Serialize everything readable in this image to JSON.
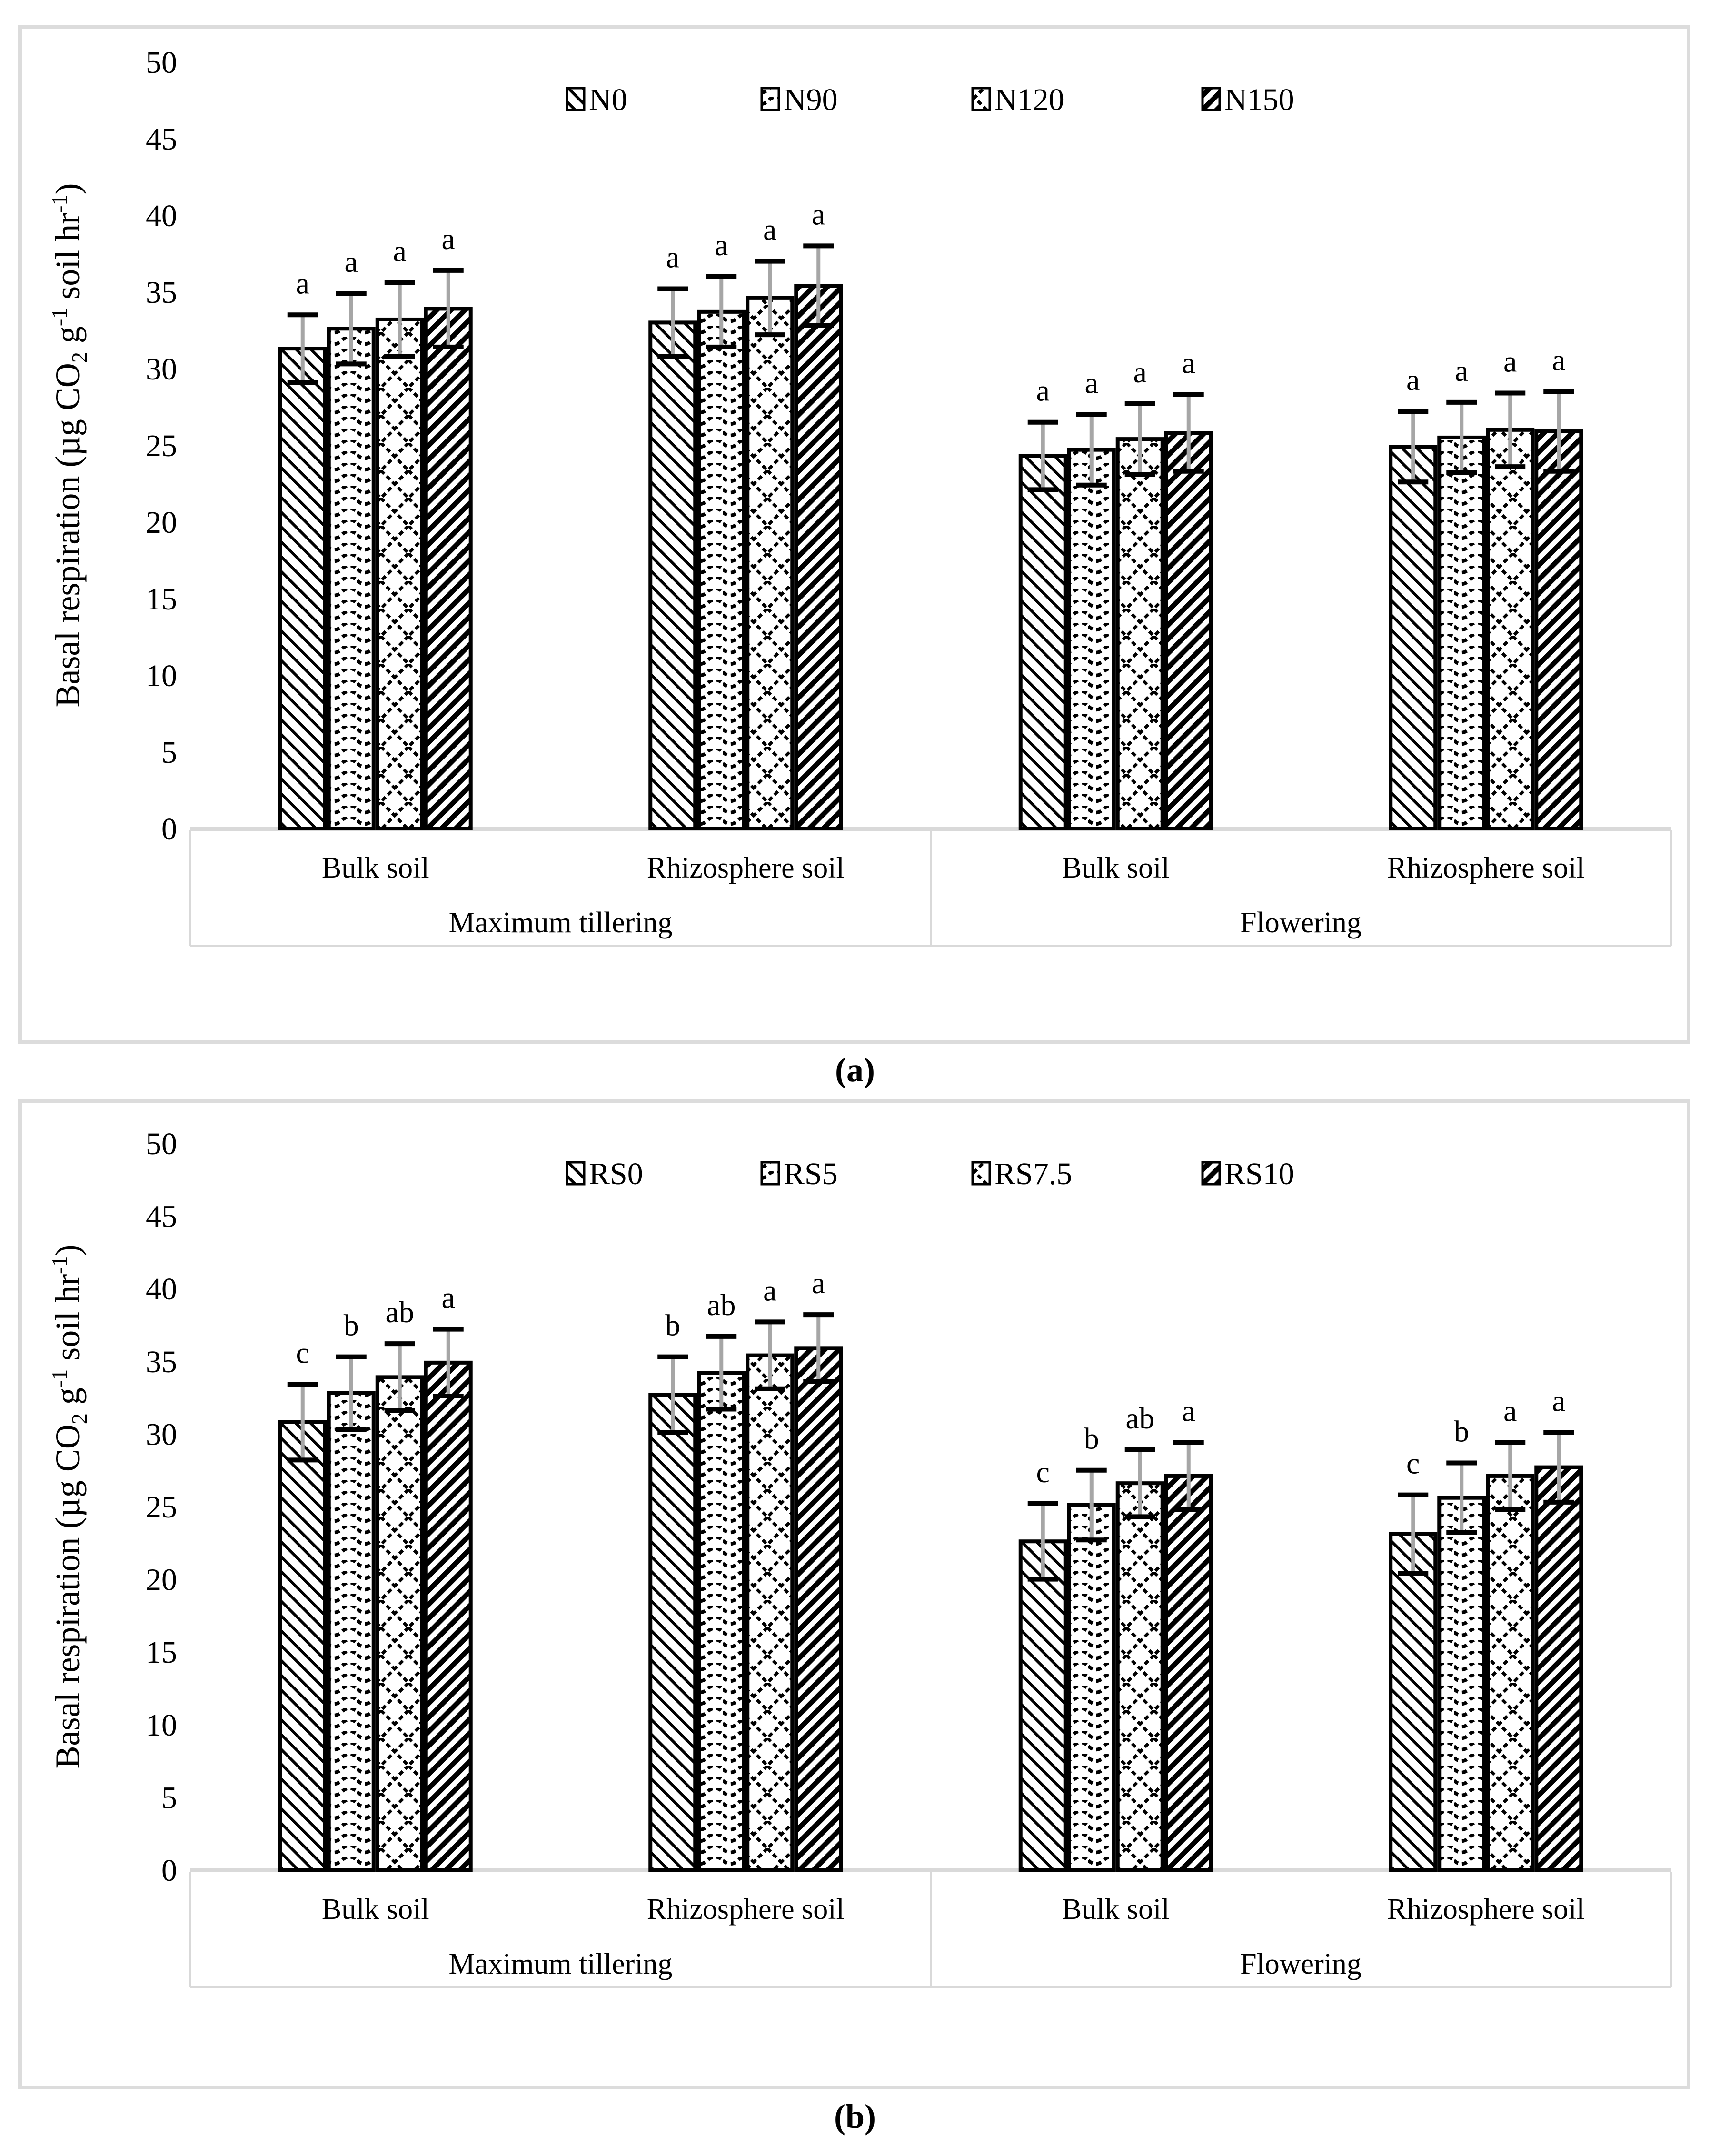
{
  "chart_data": [
    {
      "id": "a",
      "type": "bar",
      "caption": "(a)",
      "ylabel": "Basal respiration (µg CO2 g-1 soil hr-1)",
      "ylabel_parts": [
        {
          "text": "Basal respiration (µg CO",
          "style": "normal"
        },
        {
          "text": "2",
          "style": "sub"
        },
        {
          "text": " g",
          "style": "normal"
        },
        {
          "text": "-1",
          "style": "sup"
        },
        {
          "text": " soil hr",
          "style": "normal"
        },
        {
          "text": "-1",
          "style": "sup"
        },
        {
          "text": ")",
          "style": "normal"
        }
      ],
      "ylim": [
        0,
        50
      ],
      "ytick_step": 5,
      "yticks": [
        0,
        5,
        10,
        15,
        20,
        25,
        30,
        35,
        40,
        45,
        50
      ],
      "grid": false,
      "legend_position": "top-center",
      "legend": [
        "N0",
        "N90",
        "N120",
        "N150"
      ],
      "pattern_names": [
        "thin-backslash-hatch",
        "wavy-dash-rows",
        "dotted-crosshatch",
        "thick-slash-hatch"
      ],
      "group_labels": [
        "Bulk soil",
        "Rhizosphere soil",
        "Bulk soil",
        "Rhizosphere soil"
      ],
      "stage_labels": [
        "Maximum tillering",
        "Flowering"
      ],
      "series": [
        {
          "name": "N0",
          "values": [
            31.3,
            33.0,
            24.3,
            24.9
          ],
          "errors": [
            2.2,
            2.2,
            2.2,
            2.3
          ],
          "letters": [
            "a",
            "a",
            "a",
            "a"
          ]
        },
        {
          "name": "N90",
          "values": [
            32.6,
            33.7,
            24.7,
            25.5
          ],
          "errors": [
            2.3,
            2.3,
            2.3,
            2.3
          ],
          "letters": [
            "a",
            "a",
            "a",
            "a"
          ]
        },
        {
          "name": "N120",
          "values": [
            33.2,
            34.6,
            25.4,
            26.0
          ],
          "errors": [
            2.4,
            2.4,
            2.3,
            2.4
          ],
          "letters": [
            "a",
            "a",
            "a",
            "a"
          ]
        },
        {
          "name": "N150",
          "values": [
            33.9,
            35.4,
            25.8,
            25.9
          ],
          "errors": [
            2.5,
            2.6,
            2.5,
            2.6
          ],
          "letters": [
            "a",
            "a",
            "a",
            "a"
          ]
        }
      ],
      "error_bar_color": "#a6a6a6",
      "bar_outline_color": "#000000",
      "frame_color": "#d9d9d9"
    },
    {
      "id": "b",
      "type": "bar",
      "caption": "(b)",
      "ylabel": "Basal respiration (µg CO2 g-1 soil hr-1)",
      "ylabel_parts": [
        {
          "text": "Basal respiration (µg CO",
          "style": "normal"
        },
        {
          "text": "2",
          "style": "sub"
        },
        {
          "text": " g",
          "style": "normal"
        },
        {
          "text": "-1",
          "style": "sup"
        },
        {
          "text": " soil hr",
          "style": "normal"
        },
        {
          "text": "-1",
          "style": "sup"
        },
        {
          "text": ")",
          "style": "normal"
        }
      ],
      "ylim": [
        0,
        50
      ],
      "ytick_step": 5,
      "yticks": [
        0,
        5,
        10,
        15,
        20,
        25,
        30,
        35,
        40,
        45,
        50
      ],
      "grid": false,
      "legend_position": "top-center",
      "legend": [
        "RS0",
        "RS5",
        "RS7.5",
        "RS10"
      ],
      "pattern_names": [
        "thin-backslash-hatch",
        "wavy-dash-rows",
        "dotted-crosshatch",
        "thick-slash-hatch"
      ],
      "group_labels": [
        "Bulk soil",
        "Rhizosphere soil",
        "Bulk soil",
        "Rhizosphere soil"
      ],
      "stage_labels": [
        "Maximum tillering",
        "Flowering"
      ],
      "series": [
        {
          "name": "RS0",
          "values": [
            30.8,
            32.7,
            22.6,
            23.1
          ],
          "errors": [
            2.6,
            2.6,
            2.6,
            2.7
          ],
          "letters": [
            "c",
            "b",
            "c",
            "c"
          ]
        },
        {
          "name": "RS5",
          "values": [
            32.8,
            34.2,
            25.1,
            25.6
          ],
          "errors": [
            2.5,
            2.5,
            2.4,
            2.4
          ],
          "letters": [
            "b",
            "ab",
            "b",
            "b"
          ]
        },
        {
          "name": "RS7.5",
          "values": [
            33.9,
            35.4,
            26.6,
            27.1
          ],
          "errors": [
            2.3,
            2.3,
            2.3,
            2.3
          ],
          "letters": [
            "ab",
            "a",
            "ab",
            "a"
          ]
        },
        {
          "name": "RS10",
          "values": [
            34.9,
            35.9,
            27.1,
            27.7
          ],
          "errors": [
            2.3,
            2.3,
            2.3,
            2.4
          ],
          "letters": [
            "a",
            "a",
            "a",
            "a"
          ]
        }
      ],
      "error_bar_color": "#a6a6a6",
      "bar_outline_color": "#000000",
      "frame_color": "#d9d9d9"
    }
  ]
}
